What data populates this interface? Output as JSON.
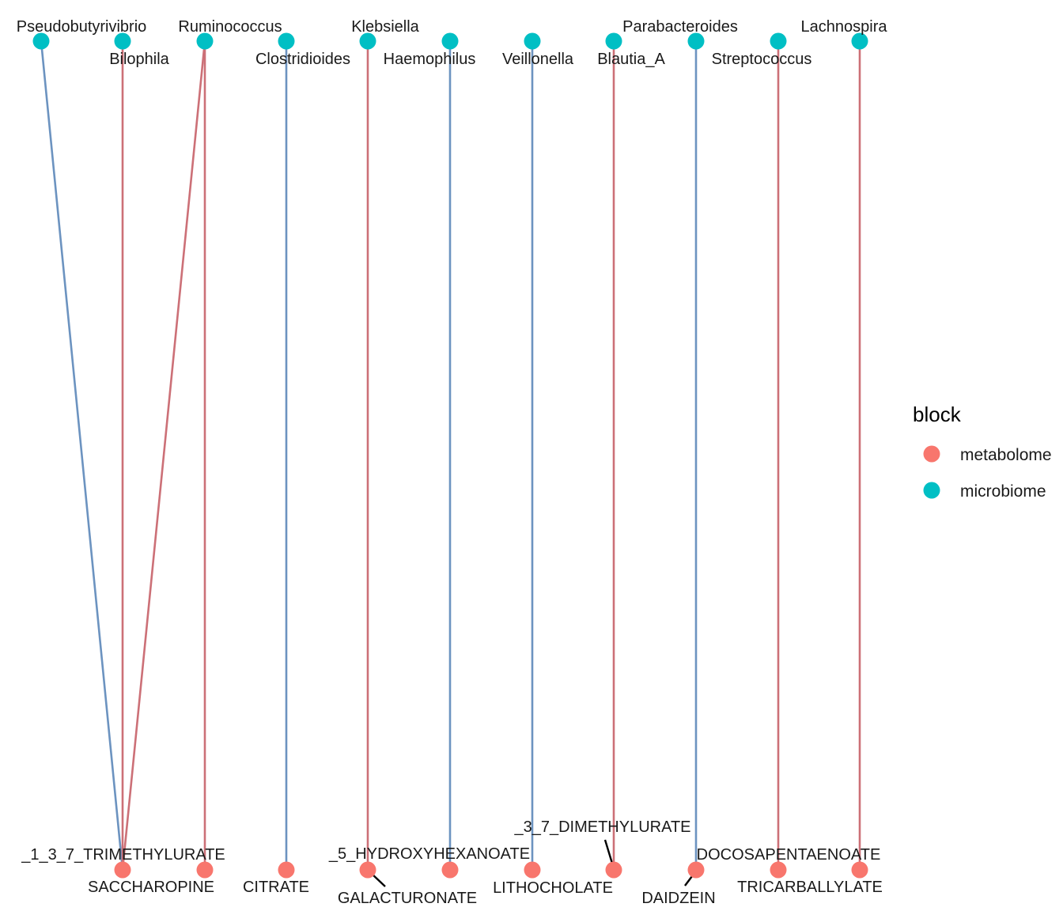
{
  "colors": {
    "metabolome": "#F8766D",
    "microbiome": "#00BFC4",
    "edge_positive": "#CC7077",
    "edge_negative": "#6C93C0"
  },
  "microbiome_nodes": [
    {
      "id": "m1",
      "label": "Pseudobutyrivibrio"
    },
    {
      "id": "m2",
      "label": "Bilophila"
    },
    {
      "id": "m3",
      "label": "Ruminococcus"
    },
    {
      "id": "m4",
      "label": "Clostridioides"
    },
    {
      "id": "m5",
      "label": "Klebsiella"
    },
    {
      "id": "m6",
      "label": "Haemophilus"
    },
    {
      "id": "m7",
      "label": "Veillonella"
    },
    {
      "id": "m8",
      "label": "Blautia_A"
    },
    {
      "id": "m9",
      "label": "Parabacteroides"
    },
    {
      "id": "m10",
      "label": "Streptococcus"
    },
    {
      "id": "m11",
      "label": "Lachnospira"
    }
  ],
  "metabolome_nodes": [
    {
      "id": "b1",
      "label": "_1_3_7_TRIMETHYLURATE"
    },
    {
      "id": "b2",
      "label": "SACCHAROPINE"
    },
    {
      "id": "b3",
      "label": "CITRATE"
    },
    {
      "id": "b4",
      "label": "GALACTURONATE"
    },
    {
      "id": "b5",
      "label": "_5_HYDROXYHEXANOATE"
    },
    {
      "id": "b6",
      "label": "LITHOCHOLATE"
    },
    {
      "id": "b7",
      "label": "_3_7_DIMETHYLURATE"
    },
    {
      "id": "b8",
      "label": "DAIDZEIN"
    },
    {
      "id": "b9",
      "label": "DOCOSAPENTAENOATE"
    },
    {
      "id": "b10",
      "label": "TRICARBALLYLATE"
    }
  ],
  "edges": [
    {
      "from": "m1",
      "to": "b1",
      "sign": "negative"
    },
    {
      "from": "m2",
      "to": "b1",
      "sign": "positive"
    },
    {
      "from": "m3",
      "to": "b1",
      "sign": "positive"
    },
    {
      "from": "m3",
      "to": "b2",
      "sign": "positive"
    },
    {
      "from": "m4",
      "to": "b3",
      "sign": "negative"
    },
    {
      "from": "m5",
      "to": "b4",
      "sign": "positive"
    },
    {
      "from": "m6",
      "to": "b5",
      "sign": "negative"
    },
    {
      "from": "m7",
      "to": "b6",
      "sign": "negative"
    },
    {
      "from": "m8",
      "to": "b7",
      "sign": "positive"
    },
    {
      "from": "m9",
      "to": "b8",
      "sign": "negative"
    },
    {
      "from": "m10",
      "to": "b9",
      "sign": "positive"
    },
    {
      "from": "m11",
      "to": "b10",
      "sign": "positive"
    }
  ],
  "legend": {
    "title": "block",
    "items": [
      {
        "label": "metabolome",
        "block": "metabolome"
      },
      {
        "label": "microbiome",
        "block": "microbiome"
      }
    ]
  }
}
